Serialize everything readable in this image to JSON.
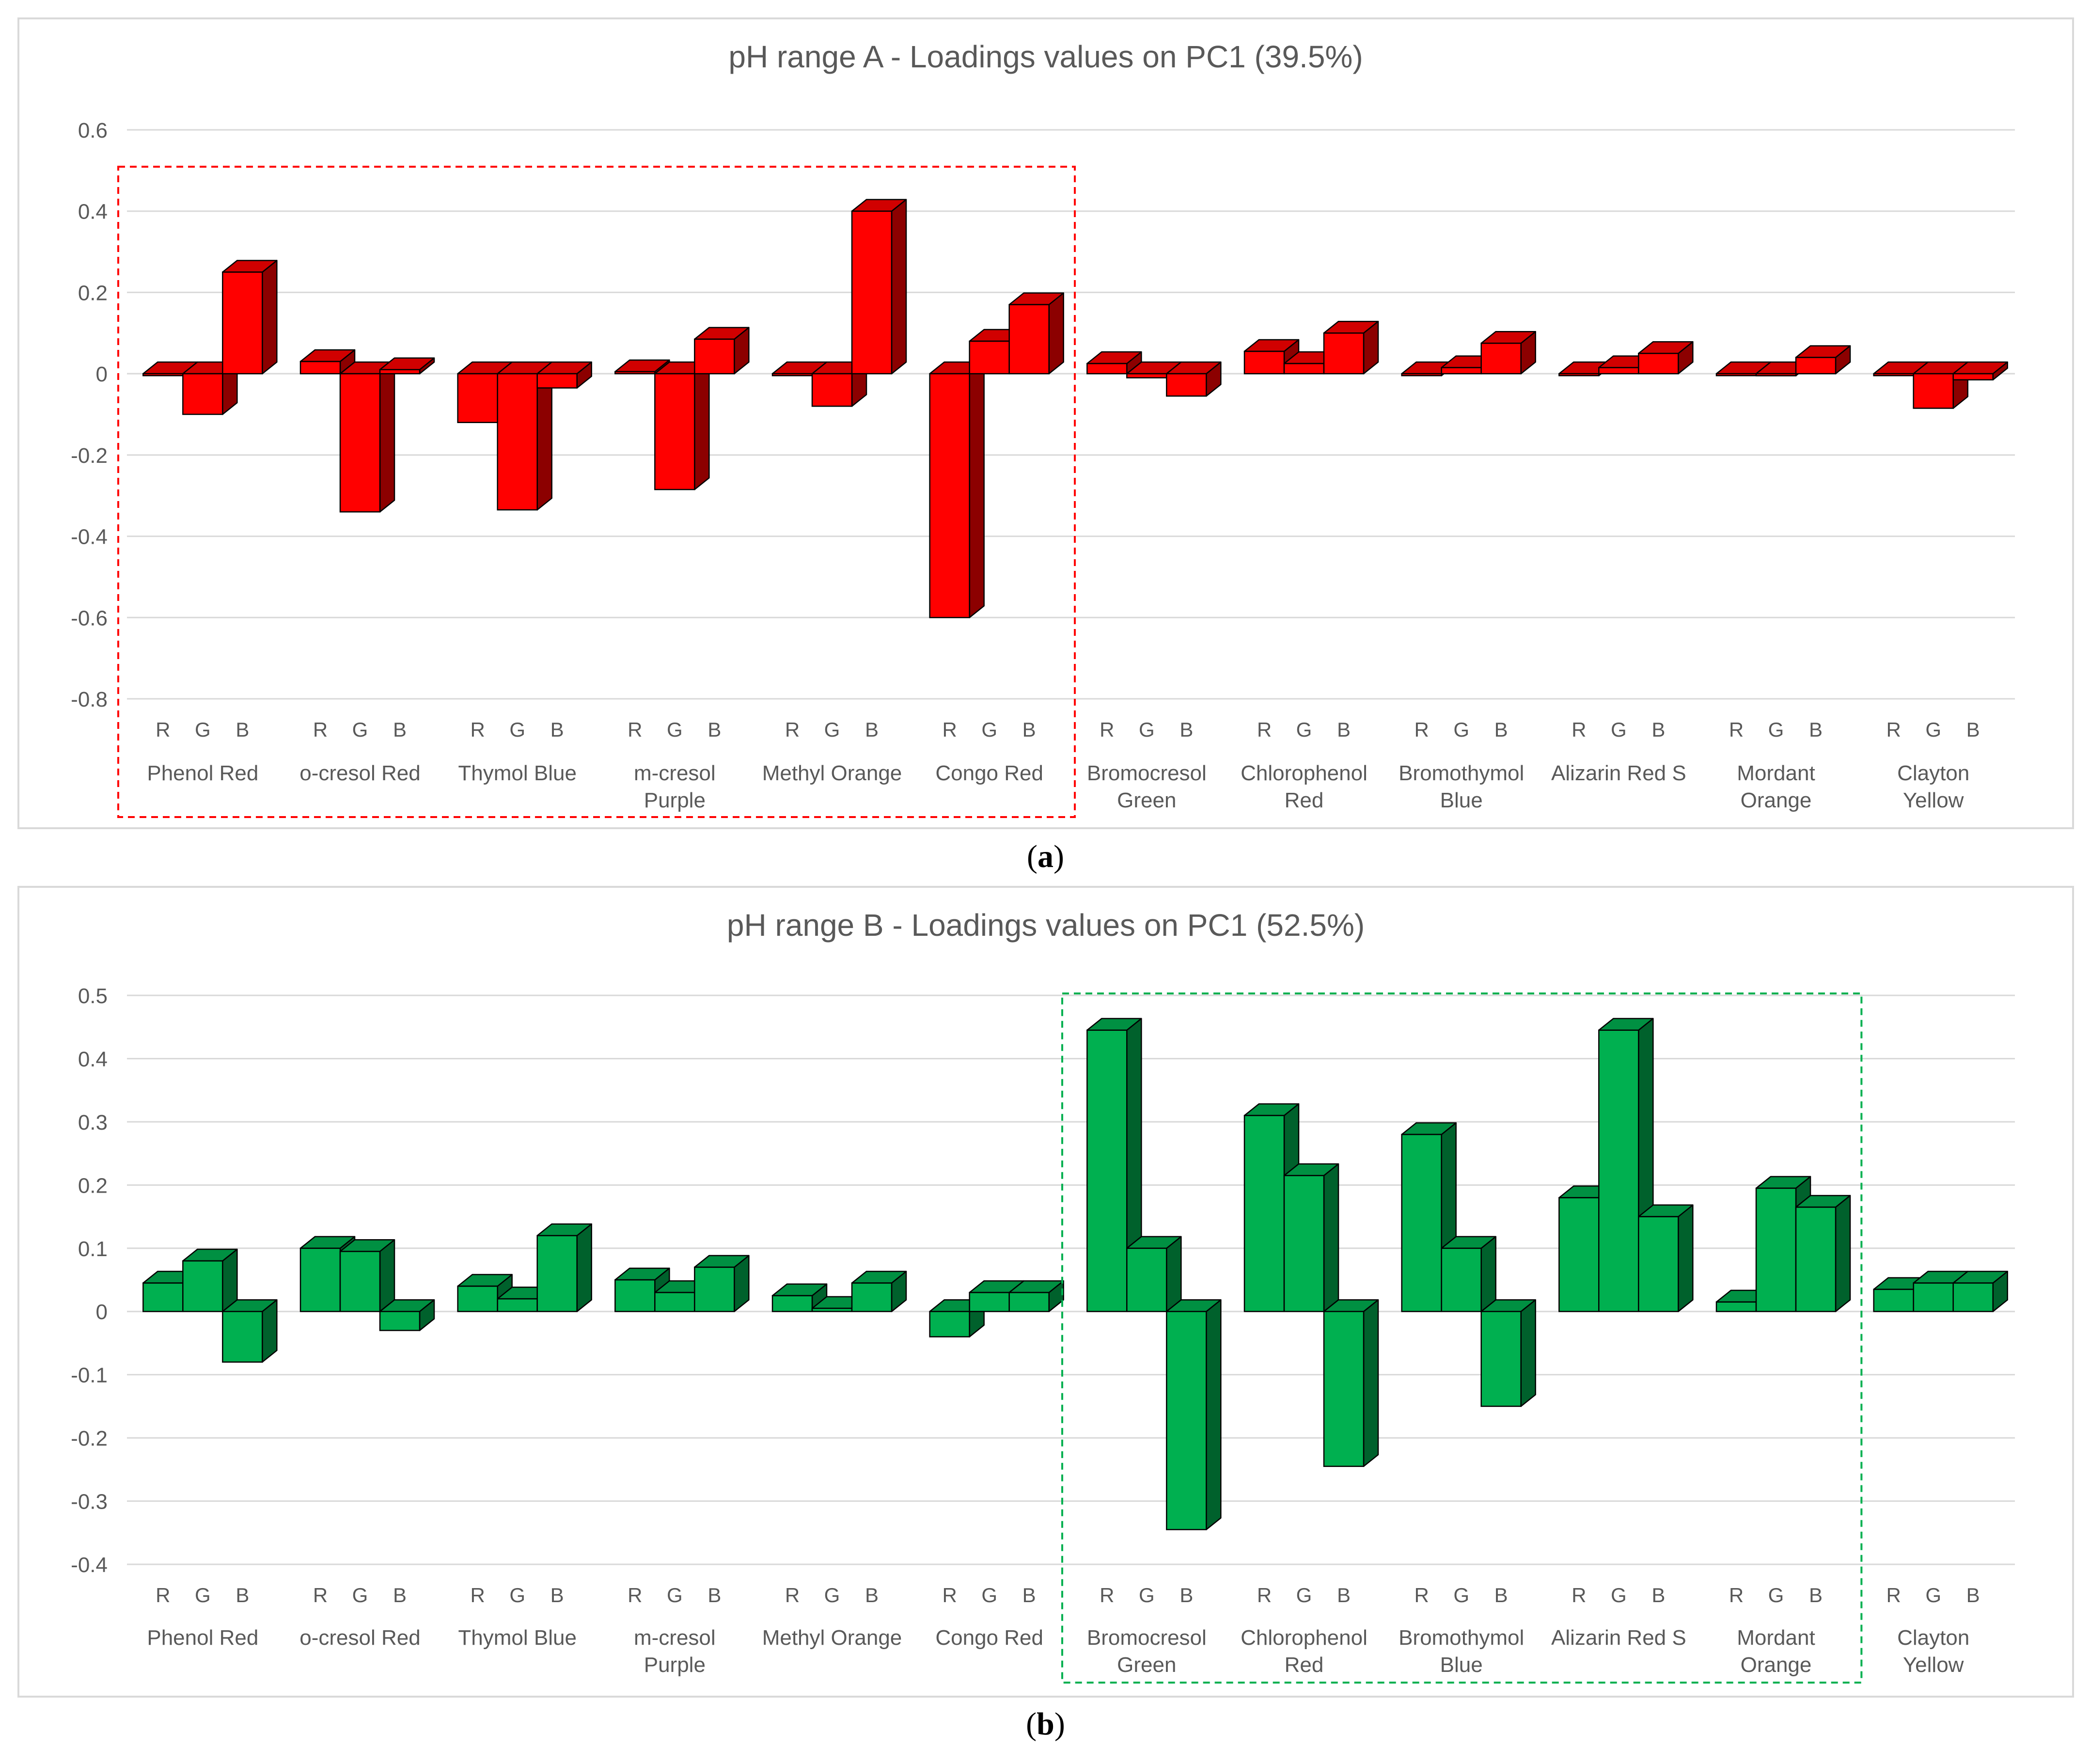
{
  "chart_data": [
    {
      "type": "bar",
      "title": "pH range A - Loadings values on PC1 (39.5%)",
      "caption": "a",
      "color": "#ff0000",
      "highlight_color": "#ff0000",
      "highlight_groups": [
        0,
        5
      ],
      "ylim": [
        -0.8,
        0.6
      ],
      "yticks": [
        -0.8,
        -0.6,
        -0.4,
        -0.2,
        0,
        0.2,
        0.4,
        0.6
      ],
      "ytick_labels": [
        "-0.8",
        "-0.6",
        "-0.4",
        "-0.2",
        "0",
        "0.2",
        "0.4",
        "0.6"
      ],
      "channels": [
        "R",
        "G",
        "B"
      ],
      "groups": [
        {
          "label": [
            "Phenol Red"
          ],
          "values": [
            0.0,
            -0.1,
            0.25
          ]
        },
        {
          "label": [
            "o-cresol Red"
          ],
          "values": [
            0.03,
            -0.34,
            0.01
          ]
        },
        {
          "label": [
            "Thymol Blue"
          ],
          "values": [
            -0.12,
            -0.335,
            -0.035
          ]
        },
        {
          "label": [
            "m-cresol",
            "Purple"
          ],
          "values": [
            0.005,
            -0.285,
            0.085
          ]
        },
        {
          "label": [
            "Methyl Orange"
          ],
          "values": [
            0.0,
            -0.08,
            0.4
          ]
        },
        {
          "label": [
            "Congo Red"
          ],
          "values": [
            -0.6,
            0.08,
            0.17
          ]
        },
        {
          "label": [
            "Bromocresol",
            "Green"
          ],
          "values": [
            0.025,
            -0.01,
            -0.055
          ]
        },
        {
          "label": [
            "Chlorophenol",
            "Red"
          ],
          "values": [
            0.055,
            0.025,
            0.1
          ]
        },
        {
          "label": [
            "Bromothymol",
            "Blue"
          ],
          "values": [
            0.0,
            0.015,
            0.075
          ]
        },
        {
          "label": [
            "Alizarin Red S"
          ],
          "values": [
            0.0,
            0.015,
            0.05
          ]
        },
        {
          "label": [
            "Mordant",
            "Orange"
          ],
          "values": [
            0.0,
            -0.005,
            0.04
          ]
        },
        {
          "label": [
            "Clayton",
            "Yellow"
          ],
          "values": [
            0.0,
            -0.085,
            -0.015
          ]
        }
      ]
    },
    {
      "type": "bar",
      "title": "pH range B - Loadings values on PC1 (52.5%)",
      "caption": "b",
      "color": "#00b050",
      "highlight_color": "#00b050",
      "highlight_groups": [
        6,
        10
      ],
      "ylim": [
        -0.4,
        0.5
      ],
      "yticks": [
        -0.4,
        -0.3,
        -0.2,
        -0.1,
        0,
        0.1,
        0.2,
        0.3,
        0.4,
        0.5
      ],
      "ytick_labels": [
        "-0.4",
        "-0.3",
        "-0.2",
        "-0.1",
        "0",
        "0.1",
        "0.2",
        "0.3",
        "0.4",
        "0.5"
      ],
      "channels": [
        "R",
        "G",
        "B"
      ],
      "groups": [
        {
          "label": [
            "Phenol Red"
          ],
          "values": [
            0.045,
            0.08,
            -0.08
          ]
        },
        {
          "label": [
            "o-cresol Red"
          ],
          "values": [
            0.1,
            0.095,
            -0.03
          ]
        },
        {
          "label": [
            "Thymol Blue"
          ],
          "values": [
            0.04,
            0.02,
            0.12
          ]
        },
        {
          "label": [
            "m-cresol",
            "Purple"
          ],
          "values": [
            0.05,
            0.03,
            0.07
          ]
        },
        {
          "label": [
            "Methyl Orange"
          ],
          "values": [
            0.025,
            0.005,
            0.045
          ]
        },
        {
          "label": [
            "Congo Red"
          ],
          "values": [
            -0.04,
            0.03,
            0.03
          ]
        },
        {
          "label": [
            "Bromocresol",
            "Green"
          ],
          "values": [
            0.445,
            0.1,
            -0.345
          ]
        },
        {
          "label": [
            "Chlorophenol",
            "Red"
          ],
          "values": [
            0.31,
            0.215,
            -0.245
          ]
        },
        {
          "label": [
            "Bromothymol",
            "Blue"
          ],
          "values": [
            0.28,
            0.1,
            -0.15
          ]
        },
        {
          "label": [
            "Alizarin Red S"
          ],
          "values": [
            0.18,
            0.445,
            0.15
          ]
        },
        {
          "label": [
            "Mordant",
            "Orange"
          ],
          "values": [
            0.015,
            0.195,
            0.165
          ]
        },
        {
          "label": [
            "Clayton",
            "Yellow"
          ],
          "values": [
            0.035,
            0.045,
            0.045
          ]
        }
      ]
    }
  ]
}
